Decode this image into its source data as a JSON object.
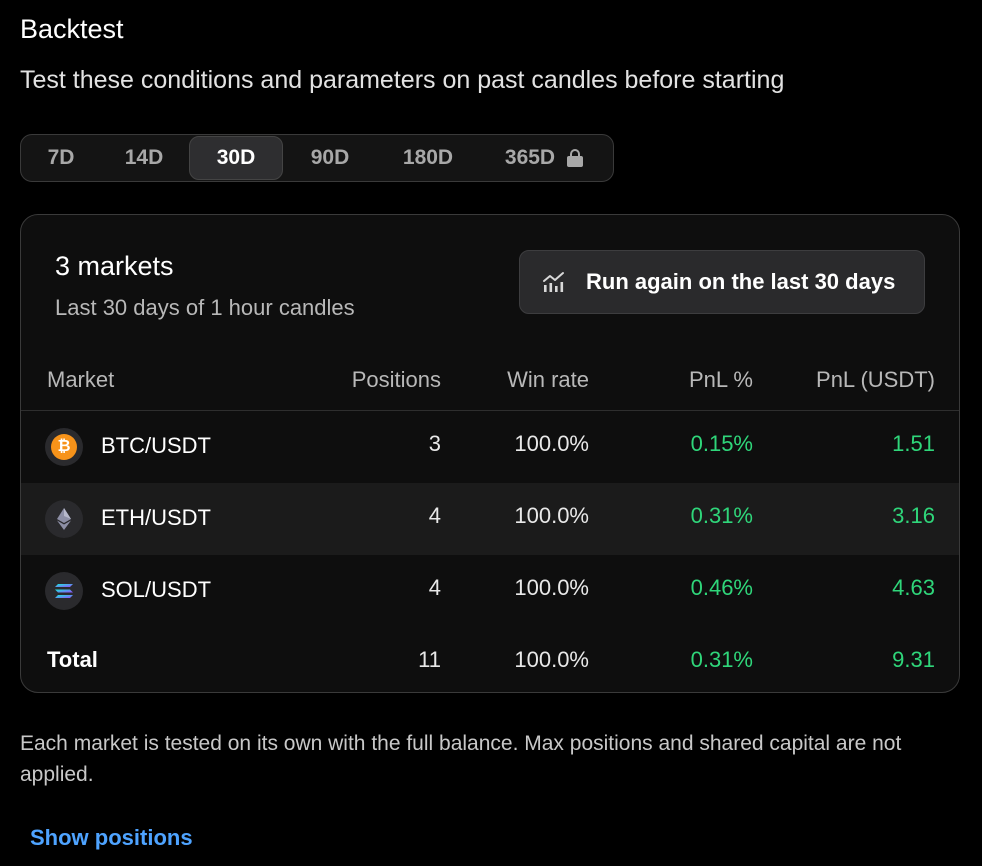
{
  "header": {
    "title": "Backtest",
    "subtitle": "Test these conditions and parameters on past candles before starting"
  },
  "range_tabs": [
    {
      "label": "7D",
      "active": false,
      "locked": false
    },
    {
      "label": "14D",
      "active": false,
      "locked": false
    },
    {
      "label": "30D",
      "active": true,
      "locked": false
    },
    {
      "label": "90D",
      "active": false,
      "locked": false
    },
    {
      "label": "180D",
      "active": false,
      "locked": false
    },
    {
      "label": "365D",
      "active": false,
      "locked": true,
      "icon": "lock-icon"
    }
  ],
  "summary": {
    "title": "3 markets",
    "subtitle": "Last 30 days of 1 hour candles",
    "run_button": {
      "label": "Run again on the last 30 days",
      "icon": "chart-icon"
    }
  },
  "table": {
    "columns": [
      "Market",
      "Positions",
      "Win rate",
      "PnL %",
      "PnL (USDT)"
    ],
    "rows": [
      {
        "market": "BTC/USDT",
        "icon": "bitcoin-icon",
        "positions": "3",
        "win_rate": "100.0%",
        "pnl_pct": "0.15%",
        "pnl_usdt": "1.51"
      },
      {
        "market": "ETH/USDT",
        "icon": "ethereum-icon",
        "positions": "4",
        "win_rate": "100.0%",
        "pnl_pct": "0.31%",
        "pnl_usdt": "3.16"
      },
      {
        "market": "SOL/USDT",
        "icon": "solana-icon",
        "positions": "4",
        "win_rate": "100.0%",
        "pnl_pct": "0.46%",
        "pnl_usdt": "4.63"
      }
    ],
    "total": {
      "label": "Total",
      "positions": "11",
      "win_rate": "100.0%",
      "pnl_pct": "0.31%",
      "pnl_usdt": "9.31"
    }
  },
  "footnote": "Each market is tested on its own with the full balance. Max positions and shared capital are not applied.",
  "show_positions_label": "Show positions",
  "colors": {
    "background": "#000000",
    "card": "#0e0e0e",
    "positive": "#2fd67a",
    "link": "#4ea3ff",
    "bitcoin": "#f7931a"
  }
}
